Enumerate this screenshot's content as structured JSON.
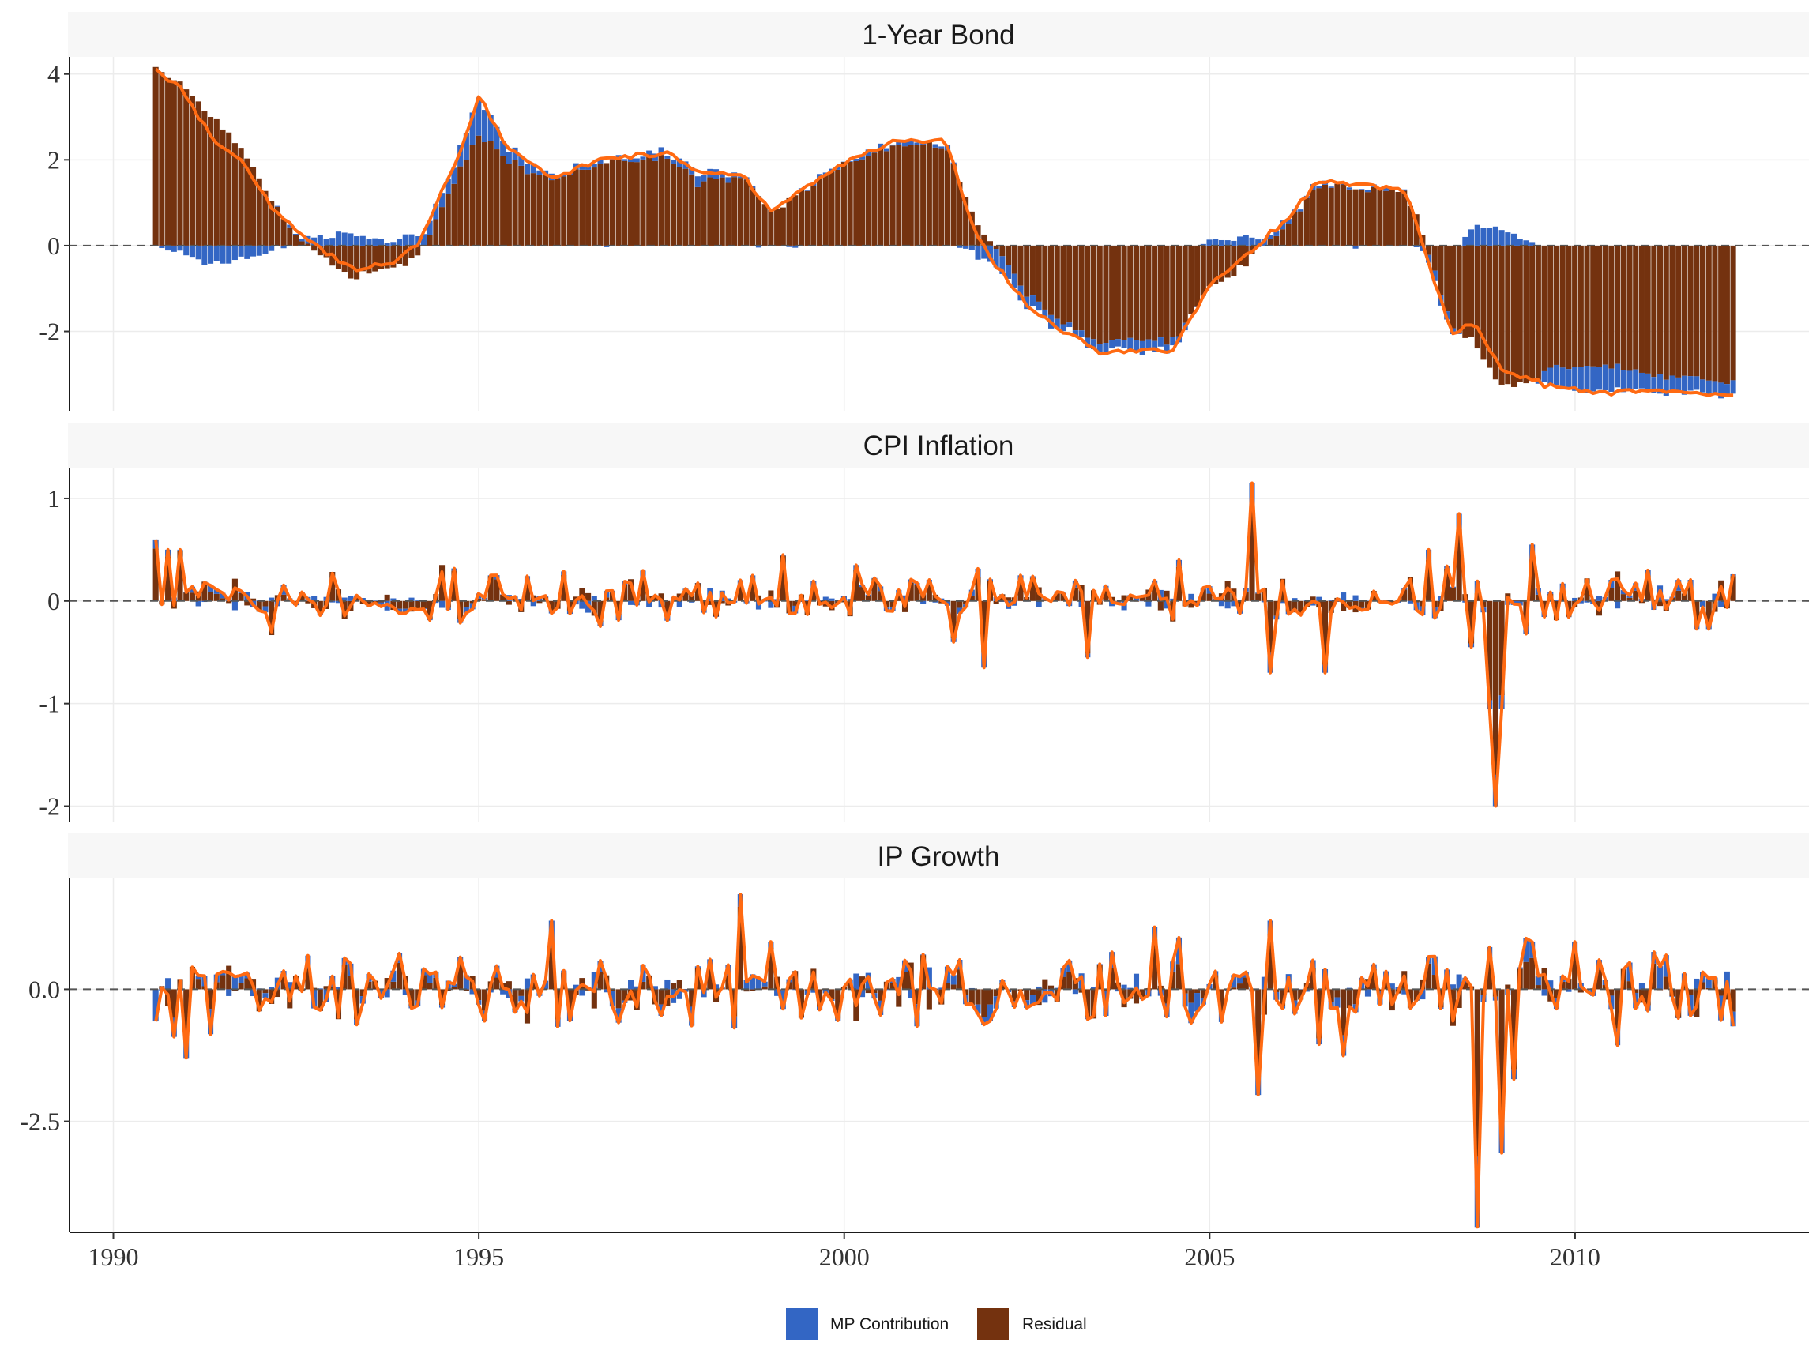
{
  "chart_data": {
    "type": "bar",
    "subtype": "stacked bars with overlay line, faceted (3 rows), shared x-axis",
    "x_axis": {
      "range": [
        1989.4,
        2013.2
      ],
      "ticks": [
        1990,
        1995,
        2000,
        2005,
        2010
      ],
      "tick_labels": [
        "1990",
        "1995",
        "2000",
        "2005",
        "2010"
      ],
      "data_span": [
        1990.58,
        2012.17
      ],
      "frequency": "monthly"
    },
    "legend": {
      "position": "bottom",
      "entries": [
        {
          "label": "MP Contribution",
          "color": "#3366c4"
        },
        {
          "label": "Residual",
          "color": "#74320f"
        }
      ]
    },
    "colors": {
      "mp": "#3366c4",
      "residual": "#74320f",
      "line": "#ff6a12",
      "zero_line": "#555555",
      "strip_bg": "#f7f7f7",
      "grid": "#ececec"
    },
    "grid": true,
    "zero_reference_line": "dashed",
    "panels": [
      {
        "title": "1-Year Bond",
        "ylim": [
          -3.85,
          4.4
        ],
        "yticks": [
          -2,
          0,
          2,
          4
        ],
        "ytick_labels": [
          "-2",
          "0",
          "2",
          "4"
        ],
        "series": [
          {
            "name": "MP Contribution",
            "role": "bar",
            "knots": [
              [
                1990.58,
                0
              ],
              [
                1990.9,
                -0.15
              ],
              [
                1991.3,
                -0.45
              ],
              [
                1991.8,
                -0.3
              ],
              [
                1992.2,
                -0.1
              ],
              [
                1992.7,
                0.2
              ],
              [
                1993.3,
                0.25
              ],
              [
                1993.8,
                0.1
              ],
              [
                1994.2,
                0.3
              ],
              [
                1994.7,
                0.4
              ],
              [
                1995.0,
                0.9
              ],
              [
                1995.4,
                0.3
              ],
              [
                1996.0,
                0.1
              ],
              [
                1996.8,
                0.05
              ],
              [
                1997.6,
                0.15
              ],
              [
                1998.0,
                0.2
              ],
              [
                1998.6,
                0.05
              ],
              [
                1999.0,
                0.0
              ],
              [
                2000.0,
                0.05
              ],
              [
                2000.8,
                0.1
              ],
              [
                2001.4,
                0.1
              ],
              [
                2001.8,
                -0.2
              ],
              [
                2002.0,
                -0.4
              ],
              [
                2002.6,
                -0.25
              ],
              [
                2003.0,
                -0.2
              ],
              [
                2003.5,
                -0.2
              ],
              [
                2004.0,
                -0.25
              ],
              [
                2004.5,
                -0.2
              ],
              [
                2005.0,
                0.1
              ],
              [
                2005.5,
                0.2
              ],
              [
                2006.0,
                0.1
              ],
              [
                2006.5,
                0.05
              ],
              [
                2007.3,
                0.05
              ],
              [
                2007.7,
                0.05
              ],
              [
                2008.0,
                -0.2
              ],
              [
                2008.3,
                -0.25
              ],
              [
                2008.6,
                0.5
              ],
              [
                2009.0,
                0.4
              ],
              [
                2009.4,
                0.1
              ],
              [
                2009.7,
                -0.45
              ],
              [
                2010.2,
                -0.6
              ],
              [
                2010.6,
                -0.55
              ],
              [
                2011.0,
                -0.4
              ],
              [
                2011.5,
                -0.35
              ],
              [
                2012.17,
                -0.3
              ]
            ]
          },
          {
            "name": "Residual",
            "role": "bar",
            "knots": [
              [
                1990.58,
                4.1
              ],
              [
                1990.9,
                3.8
              ],
              [
                1991.3,
                3.1
              ],
              [
                1991.8,
                2.2
              ],
              [
                1992.2,
                0.9
              ],
              [
                1992.7,
                -0.1
              ],
              [
                1993.3,
                -0.8
              ],
              [
                1993.8,
                -0.5
              ],
              [
                1994.2,
                -0.2
              ],
              [
                1994.7,
                1.6
              ],
              [
                1995.0,
                2.55
              ],
              [
                1995.4,
                2.0
              ],
              [
                1996.0,
                1.5
              ],
              [
                1996.8,
                2.0
              ],
              [
                1997.6,
                2.0
              ],
              [
                1998.0,
                1.5
              ],
              [
                1998.6,
                1.6
              ],
              [
                1999.0,
                0.8
              ],
              [
                2000.0,
                1.9
              ],
              [
                2000.8,
                2.4
              ],
              [
                2001.4,
                2.3
              ],
              [
                2001.8,
                0.5
              ],
              [
                2002.0,
                0.1
              ],
              [
                2002.6,
                -1.3
              ],
              [
                2003.0,
                -1.8
              ],
              [
                2003.5,
                -2.3
              ],
              [
                2004.0,
                -2.2
              ],
              [
                2004.5,
                -2.2
              ],
              [
                2005.0,
                -1.0
              ],
              [
                2005.5,
                -0.4
              ],
              [
                2006.0,
                0.4
              ],
              [
                2006.5,
                1.45
              ],
              [
                2007.3,
                1.3
              ],
              [
                2007.7,
                1.2
              ],
              [
                2008.0,
                -0.2
              ],
              [
                2008.3,
                -1.8
              ],
              [
                2008.6,
                -2.3
              ],
              [
                2009.0,
                -3.3
              ],
              [
                2009.4,
                -3.2
              ],
              [
                2009.7,
                -2.85
              ],
              [
                2010.2,
                -2.8
              ],
              [
                2010.6,
                -2.85
              ],
              [
                2011.0,
                -3.0
              ],
              [
                2011.5,
                -3.05
              ],
              [
                2012.17,
                -3.2
              ]
            ]
          },
          {
            "name": "Total",
            "role": "line",
            "knots": [
              [
                1990.58,
                4.1
              ],
              [
                1990.9,
                3.7
              ],
              [
                1991.3,
                2.65
              ],
              [
                1991.8,
                1.9
              ],
              [
                1992.2,
                0.8
              ],
              [
                1992.7,
                0.1
              ],
              [
                1993.3,
                -0.55
              ],
              [
                1993.8,
                -0.4
              ],
              [
                1994.2,
                0.1
              ],
              [
                1994.7,
                2.0
              ],
              [
                1995.0,
                3.45
              ],
              [
                1995.4,
                2.3
              ],
              [
                1996.0,
                1.6
              ],
              [
                1996.8,
                2.05
              ],
              [
                1997.6,
                2.15
              ],
              [
                1998.0,
                1.7
              ],
              [
                1998.6,
                1.65
              ],
              [
                1999.0,
                0.8
              ],
              [
                2000.0,
                1.95
              ],
              [
                2000.8,
                2.5
              ],
              [
                2001.4,
                2.4
              ],
              [
                2001.8,
                0.3
              ],
              [
                2002.0,
                -0.3
              ],
              [
                2002.6,
                -1.55
              ],
              [
                2003.0,
                -2.0
              ],
              [
                2003.5,
                -2.5
              ],
              [
                2004.0,
                -2.45
              ],
              [
                2004.5,
                -2.4
              ],
              [
                2005.0,
                -0.9
              ],
              [
                2005.5,
                -0.2
              ],
              [
                2006.0,
                0.5
              ],
              [
                2006.5,
                1.5
              ],
              [
                2007.3,
                1.35
              ],
              [
                2007.7,
                1.25
              ],
              [
                2008.0,
                -0.4
              ],
              [
                2008.3,
                -2.05
              ],
              [
                2008.6,
                -1.8
              ],
              [
                2009.0,
                -2.9
              ],
              [
                2009.4,
                -3.1
              ],
              [
                2009.7,
                -3.3
              ],
              [
                2010.2,
                -3.4
              ],
              [
                2010.6,
                -3.4
              ],
              [
                2011.0,
                -3.4
              ],
              [
                2011.5,
                -3.4
              ],
              [
                2012.17,
                -3.5
              ]
            ]
          }
        ]
      },
      {
        "title": "CPI Inflation",
        "ylim": [
          -2.15,
          1.3
        ],
        "yticks": [
          -2,
          -1,
          0,
          1
        ],
        "ytick_labels": [
          "-2",
          "-1",
          "0",
          "1"
        ],
        "mp_to_total_ratio": 0.15,
        "base_noise_sd": 0.12,
        "series": [
          {
            "name": "Total",
            "role": "line",
            "events": [
              [
                1990.58,
                0.6
              ],
              [
                1990.75,
                0.5
              ],
              [
                1990.92,
                0.5
              ],
              [
                1992.2,
                -0.3
              ],
              [
                1995.2,
                0.25
              ],
              [
                1999.2,
                0.45
              ],
              [
                2000.2,
                0.35
              ],
              [
                2001.5,
                -0.4
              ],
              [
                2001.9,
                -0.65
              ],
              [
                2002.4,
                0.25
              ],
              [
                2003.3,
                -0.55
              ],
              [
                2004.6,
                0.4
              ],
              [
                2005.6,
                1.15
              ],
              [
                2005.8,
                -0.7
              ],
              [
                2006.6,
                -0.7
              ],
              [
                2008.0,
                0.5
              ],
              [
                2008.4,
                0.85
              ],
              [
                2008.6,
                -0.45
              ],
              [
                2008.8,
                -1.05
              ],
              [
                2008.9,
                -2.0
              ],
              [
                2009.0,
                -1.05
              ],
              [
                2009.4,
                0.55
              ],
              [
                2011.0,
                0.3
              ]
            ]
          },
          {
            "name": "MP Contribution",
            "role": "bar",
            "derived_from": "Total"
          },
          {
            "name": "Residual",
            "role": "bar",
            "derived_from": "Total"
          }
        ]
      },
      {
        "title": "IP Growth",
        "ylim": [
          -4.6,
          2.1
        ],
        "yticks": [
          -2.5,
          0.0
        ],
        "ytick_labels": [
          "-2.5",
          "0.0"
        ],
        "mp_to_total_ratio": 0.3,
        "base_noise_sd": 0.38,
        "series": [
          {
            "name": "Total",
            "role": "line",
            "events": [
              [
                1990.85,
                -0.9
              ],
              [
                1991.0,
                -1.3
              ],
              [
                1991.3,
                -0.85
              ],
              [
                1992.0,
                -0.4
              ],
              [
                1995.1,
                -0.6
              ],
              [
                1996.0,
                1.3
              ],
              [
                1998.6,
                1.8
              ],
              [
                1999.0,
                0.9
              ],
              [
                2001.0,
                -0.7
              ],
              [
                2002.0,
                -0.6
              ],
              [
                2005.7,
                -2.0
              ],
              [
                2005.8,
                1.3
              ],
              [
                2008.3,
                -0.6
              ],
              [
                2008.7,
                -4.5
              ],
              [
                2008.8,
                0.8
              ],
              [
                2009.0,
                -3.1
              ],
              [
                2009.2,
                -1.7
              ],
              [
                2009.4,
                0.9
              ],
              [
                2010.0,
                0.9
              ],
              [
                2011.5,
                0.3
              ],
              [
                2012.17,
                -0.7
              ]
            ]
          },
          {
            "name": "MP Contribution",
            "role": "bar",
            "derived_from": "Total"
          },
          {
            "name": "Residual",
            "role": "bar",
            "derived_from": "Total"
          }
        ]
      }
    ]
  }
}
